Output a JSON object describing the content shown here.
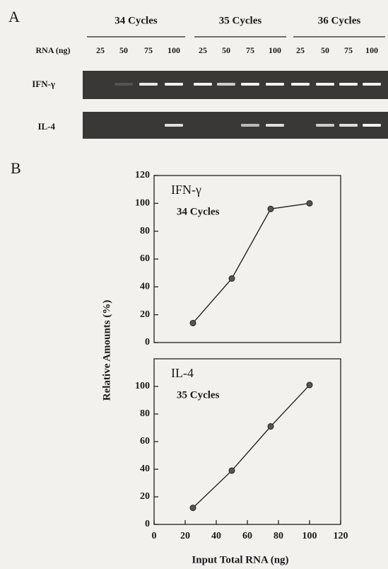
{
  "panel_a": {
    "label": "A",
    "groups": [
      "34 Cycles",
      "35 Cycles",
      "36 Cycles"
    ],
    "row_header": "RNA (ng)",
    "lanes": [
      25,
      50,
      75,
      100
    ],
    "rows": [
      "IFN-γ",
      "IL-4"
    ]
  },
  "panel_b": {
    "label": "B",
    "y_label": "Relative Amounts (%)",
    "x_label": "Input Total RNA (ng)"
  },
  "chart_data": [
    {
      "type": "line",
      "annotations": [
        "IFN-γ",
        "34 Cycles"
      ],
      "x": [
        25,
        50,
        75,
        100
      ],
      "values": [
        14,
        46,
        96,
        100
      ],
      "color": "#222222",
      "xlim": [
        0,
        120
      ],
      "ylim": [
        0,
        120
      ],
      "yticks": [
        0,
        20,
        40,
        60,
        80,
        100,
        120
      ]
    },
    {
      "type": "line",
      "annotations": [
        "IL-4",
        "35 Cycles"
      ],
      "x": [
        25,
        50,
        75,
        100
      ],
      "values": [
        12,
        39,
        71,
        101
      ],
      "color": "#222222",
      "xlim": [
        0,
        120
      ],
      "ylim": [
        0,
        120
      ],
      "yticks": [
        0,
        20,
        40,
        60,
        80,
        100
      ],
      "xticks": [
        0,
        20,
        40,
        60,
        80,
        100,
        120
      ]
    }
  ]
}
